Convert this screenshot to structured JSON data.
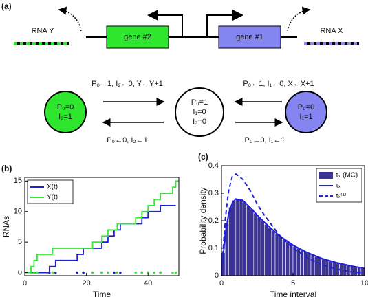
{
  "diagram": {
    "label": "(a)",
    "rna_y": "RNA Y",
    "gene2": "gene #2",
    "gene1": "gene #1",
    "rna_x": "RNA X",
    "transitions": [
      "P₀←1, I₂←0, Y←Y+1",
      "P₀←0, I₂←1",
      "P₀←1, I₁←0, X←X+1",
      "P₀←0, I₁←1"
    ],
    "states": [
      {
        "lines": [
          "P₀=0",
          "I₂=1"
        ]
      },
      {
        "lines": [
          "P₀=1",
          "I₁=0",
          "I₂=0"
        ]
      },
      {
        "lines": [
          "P₀=0",
          "I₁=1"
        ]
      }
    ]
  },
  "chart_data": [
    {
      "type": "line",
      "panel_label": "(b)",
      "step": "post",
      "xlabel": "Time",
      "ylabel": "RNAs",
      "xlim": [
        0,
        50
      ],
      "xticks": [
        0,
        20,
        40
      ],
      "ylim": [
        -0.5,
        15.6
      ],
      "yticks": [
        0,
        5,
        10,
        15
      ],
      "legend": "northwest",
      "series": [
        {
          "name": "X(t)",
          "color": "#1f1fd8",
          "x": [
            0,
            8,
            10,
            17,
            19,
            25,
            27,
            29,
            31,
            38,
            40,
            44,
            49
          ],
          "values": [
            0,
            1,
            2,
            3,
            4,
            5,
            6,
            7,
            8,
            9,
            10,
            11,
            11
          ]
        },
        {
          "name": "Y(t)",
          "color": "#33e833",
          "x": [
            0,
            2,
            3,
            4,
            9,
            22,
            25,
            27,
            30,
            36,
            38,
            40,
            42,
            44,
            48,
            49,
            50
          ],
          "values": [
            0,
            1,
            2,
            3,
            4,
            5,
            6,
            7,
            8,
            9,
            10,
            11,
            12,
            13,
            14,
            15,
            15
          ]
        }
      ]
    },
    {
      "type": "histogram",
      "panel_label": "(c)",
      "xlabel": "Time interval",
      "ylabel": "Probability density",
      "xlim": [
        0,
        10
      ],
      "xticks": [
        0,
        5,
        10
      ],
      "ylim": [
        0,
        0.4
      ],
      "yticks": [
        0,
        0.1,
        0.2,
        0.3,
        0.4
      ],
      "legend": "northeast",
      "name": "τₓ (MC)",
      "color": "#3b3494",
      "bins": [
        0,
        0.25,
        0.5,
        0.75,
        1,
        1.25,
        1.5,
        1.75,
        2,
        2.25,
        2.5,
        2.75,
        3,
        3.25,
        3.5,
        3.75,
        4,
        4.25,
        4.5,
        4.75,
        5,
        5.25,
        5.5,
        5.75,
        6,
        6.25,
        6.5,
        6.75,
        7,
        7.25,
        7.5,
        7.75,
        8,
        8.25,
        8.5,
        8.75,
        9,
        9.25,
        9.5,
        9.75,
        10
      ],
      "values": [
        0.084,
        0.193,
        0.249,
        0.274,
        0.281,
        0.278,
        0.268,
        0.255,
        0.242,
        0.227,
        0.213,
        0.2,
        0.187,
        0.174,
        0.163,
        0.152,
        0.142,
        0.132,
        0.123,
        0.115,
        0.107,
        0.1,
        0.093,
        0.087,
        0.081,
        0.076,
        0.07,
        0.066,
        0.061,
        0.057,
        0.053,
        0.05,
        0.046,
        0.043,
        0.04,
        0.037,
        0.035,
        0.033,
        0.03,
        0.028
      ],
      "series": [
        {
          "name": "τₓ",
          "color": "#1f1fd8",
          "dashed": false,
          "x": [
            0,
            0.25,
            0.5,
            0.75,
            1,
            1.5,
            2,
            2.5,
            3,
            4,
            5,
            6,
            7,
            8,
            9,
            10
          ],
          "values": [
            0,
            0.146,
            0.226,
            0.264,
            0.279,
            0.273,
            0.249,
            0.22,
            0.194,
            0.147,
            0.111,
            0.084,
            0.063,
            0.048,
            0.036,
            0.027
          ]
        },
        {
          "name": "τₓ⁽¹⁾",
          "color": "#1f1fd8",
          "dashed": true,
          "x": [
            0,
            0.25,
            0.5,
            0.75,
            1,
            1.5,
            2,
            2.5,
            3,
            4,
            5,
            6,
            7,
            8,
            9,
            10
          ],
          "values": [
            0,
            0.2,
            0.31,
            0.36,
            0.37,
            0.35,
            0.31,
            0.26,
            0.22,
            0.15,
            0.1,
            0.065,
            0.04,
            0.025,
            0.015,
            0.009
          ]
        }
      ]
    }
  ]
}
